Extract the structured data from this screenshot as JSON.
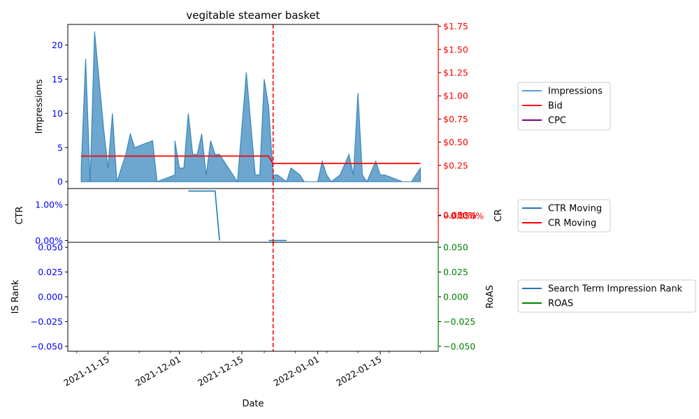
{
  "chart_data": {
    "type": "line",
    "title": "vegitable steamer basket",
    "xlabel": "Date",
    "x_ticks": [
      "2021-11-15",
      "2021-12-01",
      "2021-12-15",
      "2022-01-01",
      "2022-01-15"
    ],
    "x_range": [
      "2021-11-06",
      "2022-01-28"
    ],
    "change_date": "2021-12-22",
    "panels": [
      {
        "name": "impressions-panel",
        "ylabel_left": "Impressions",
        "left_ticks": [
          "0",
          "5",
          "10",
          "15",
          "20"
        ],
        "left_ylim": [
          -1,
          23
        ],
        "right_ticks": [
          "$0.25",
          "$0.50",
          "$0.75",
          "$1.00",
          "$1.25",
          "$1.50",
          "$1.75"
        ],
        "right_ylim": [
          0,
          1.77
        ],
        "left_color": "#0000ff",
        "right_color": "#ff0000",
        "series": [
          {
            "name": "Impressions",
            "axis": "left",
            "kind": "area",
            "color": "#1f77b4",
            "points": [
              [
                "2021-11-09",
                2
              ],
              [
                "2021-11-10",
                18
              ],
              [
                "2021-11-11",
                0
              ],
              [
                "2021-11-12",
                22
              ],
              [
                "2021-11-14",
                8
              ],
              [
                "2021-11-15",
                2
              ],
              [
                "2021-11-16",
                10
              ],
              [
                "2021-11-17",
                0
              ],
              [
                "2021-11-19",
                4
              ],
              [
                "2021-11-20",
                7
              ],
              [
                "2021-11-21",
                5
              ],
              [
                "2021-11-25",
                6
              ],
              [
                "2021-11-26",
                0
              ],
              [
                "2021-11-30",
                1
              ],
              [
                "2021-11-30",
                6
              ],
              [
                "2021-12-01",
                2
              ],
              [
                "2021-12-02",
                2
              ],
              [
                "2021-12-03",
                10
              ],
              [
                "2021-12-04",
                4
              ],
              [
                "2021-12-05",
                4
              ],
              [
                "2021-12-06",
                7
              ],
              [
                "2021-12-07",
                1
              ],
              [
                "2021-12-08",
                6
              ],
              [
                "2021-12-09",
                4
              ],
              [
                "2021-12-10",
                4
              ],
              [
                "2021-12-14",
                0
              ],
              [
                "2021-12-16",
                16
              ],
              [
                "2021-12-18",
                1
              ],
              [
                "2021-12-19",
                1
              ],
              [
                "2021-12-20",
                15
              ],
              [
                "2021-12-21",
                11
              ],
              [
                "2021-12-22",
                1
              ],
              [
                "2021-12-23",
                1
              ],
              [
                "2021-12-25",
                0
              ],
              [
                "2021-12-26",
                2
              ],
              [
                "2021-12-28",
                1
              ],
              [
                "2021-12-29",
                0
              ],
              [
                "2022-01-01",
                0
              ],
              [
                "2022-01-02",
                3
              ],
              [
                "2022-01-03",
                1
              ],
              [
                "2022-01-04",
                0
              ],
              [
                "2022-01-06",
                1
              ],
              [
                "2022-01-08",
                4
              ],
              [
                "2022-01-09",
                1
              ],
              [
                "2022-01-10",
                13
              ],
              [
                "2022-01-11",
                1
              ],
              [
                "2022-01-12",
                0
              ],
              [
                "2022-01-14",
                3
              ],
              [
                "2022-01-15",
                1
              ],
              [
                "2022-01-16",
                1
              ],
              [
                "2022-01-20",
                0
              ],
              [
                "2022-01-22",
                0
              ],
              [
                "2022-01-24",
                2
              ]
            ]
          },
          {
            "name": "Bid",
            "axis": "right",
            "kind": "line",
            "color": "#ff0000",
            "points": [
              [
                "2021-11-09",
                0.35
              ],
              [
                "2021-12-21",
                0.35
              ],
              [
                "2021-12-22",
                0.27
              ],
              [
                "2022-01-24",
                0.27
              ]
            ]
          },
          {
            "name": "CPC",
            "axis": "right",
            "kind": "line",
            "color": "#800080",
            "points": []
          }
        ]
      },
      {
        "name": "ctr-panel",
        "ylabel_left": "CTR",
        "ylabel_right": "CR",
        "left_ticks": [
          "0.00%",
          "1.00%"
        ],
        "left_ylim": [
          -0.0005,
          0.0145
        ],
        "right_ticks": [
          "−0.050%",
          "0.000%",
          "0.050%"
        ],
        "right_ylim": [
          -0.05,
          0.05
        ],
        "left_color": "#0000ff",
        "right_color": "#ff0000",
        "series": [
          {
            "name": "CTR Moving",
            "axis": "left",
            "kind": "line",
            "color": "#1f77b4",
            "segments": [
              [
                [
                  "2021-12-03",
                  0.0138
                ],
                [
                  "2021-12-09",
                  0.0138
                ],
                [
                  "2021-12-10",
                  0.0
                ]
              ],
              [
                [
                  "2021-12-21",
                  0.0
                ],
                [
                  "2021-12-25",
                  0.0
                ]
              ]
            ]
          },
          {
            "name": "CR Moving",
            "axis": "right",
            "kind": "line",
            "color": "#ff0000",
            "points": []
          }
        ]
      },
      {
        "name": "rank-panel",
        "ylabel_left": "IS Rank",
        "ylabel_right": "RoAS",
        "left_ticks": [
          "−0.050",
          "−0.025",
          "0.000",
          "0.025",
          "0.050"
        ],
        "left_ylim": [
          -0.055,
          0.055
        ],
        "right_ticks": [
          "−0.050",
          "−0.025",
          "0.000",
          "0.025",
          "0.050"
        ],
        "right_ylim": [
          -0.055,
          0.055
        ],
        "left_color": "#0000ff",
        "right_color": "#008000",
        "series": [
          {
            "name": "Search Term Impression Rank",
            "axis": "left",
            "kind": "line",
            "color": "#1f77b4",
            "points": []
          },
          {
            "name": "ROAS",
            "axis": "right",
            "kind": "line",
            "color": "#008000",
            "points": []
          }
        ]
      }
    ],
    "legends": [
      {
        "panel": "impressions-panel",
        "placement": "right",
        "entries": [
          {
            "label": "Impressions",
            "color": "#5a9fd0"
          },
          {
            "label": "Bid",
            "color": "#ff0000"
          },
          {
            "label": "CPC",
            "color": "#800080"
          }
        ]
      },
      {
        "panel": "ctr-panel",
        "placement": "right",
        "entries": [
          {
            "label": "CTR Moving",
            "color": "#1f77b4"
          },
          {
            "label": "CR Moving",
            "color": "#ff0000"
          }
        ]
      },
      {
        "panel": "rank-panel",
        "placement": "right",
        "entries": [
          {
            "label": "Search Term Impression Rank",
            "color": "#1f77b4"
          },
          {
            "label": "ROAS",
            "color": "#008000"
          }
        ]
      }
    ]
  }
}
